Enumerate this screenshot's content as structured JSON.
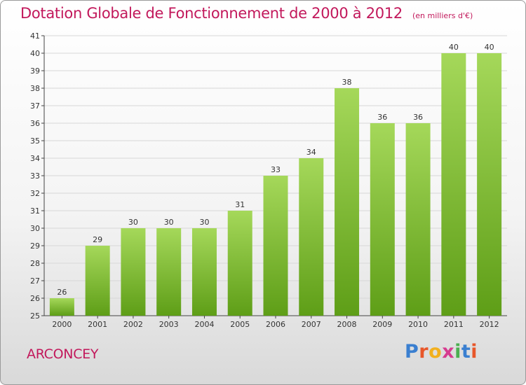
{
  "header": {
    "title": "Dotation Globale de Fonctionnement de 2000 à 2012",
    "unit": "(en milliers d'€)"
  },
  "footer": {
    "commune": "ARCONCEY",
    "brand_letters": [
      "P",
      "r",
      "o",
      "x",
      "i",
      "t",
      "i"
    ],
    "brand_colors": [
      "#3a7fd0",
      "#e8572a",
      "#f2b01e",
      "#d63b8f",
      "#4caf50",
      "#3a7fd0",
      "#e8572a"
    ]
  },
  "colors": {
    "bar_top": "#a5d85a",
    "bar_bottom": "#5e9e17",
    "title": "#c2185b",
    "grid": "#d7d7d7"
  },
  "chart_data": {
    "type": "bar",
    "title": "Dotation Globale de Fonctionnement de 2000 à 2012",
    "xlabel": "",
    "ylabel": "",
    "categories": [
      "2000",
      "2001",
      "2002",
      "2003",
      "2004",
      "2005",
      "2006",
      "2007",
      "2008",
      "2009",
      "2010",
      "2011",
      "2012"
    ],
    "values": [
      26,
      29,
      30,
      30,
      30,
      31,
      33,
      34,
      38,
      36,
      36,
      40,
      40
    ],
    "ylim": [
      25,
      41
    ],
    "yticks": [
      25,
      26,
      27,
      28,
      29,
      30,
      31,
      32,
      33,
      34,
      35,
      36,
      37,
      38,
      39,
      40,
      41
    ],
    "grid": true,
    "legend": "none"
  }
}
